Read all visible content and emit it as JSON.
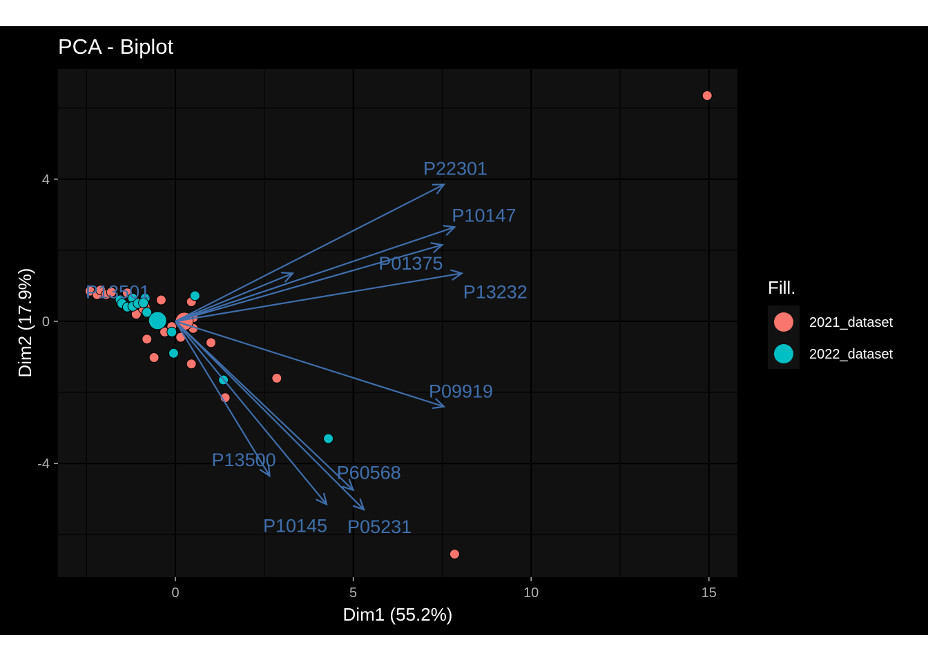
{
  "chart_data": {
    "type": "scatter",
    "title": "PCA - Biplot",
    "xlabel": "Dim1 (55.2%)",
    "ylabel": "Dim2 (17.9%)",
    "xlim": [
      -3.3,
      15.8
    ],
    "ylim": [
      -7.2,
      7.1
    ],
    "x_ticks": [
      0,
      5,
      10,
      15
    ],
    "y_ticks": [
      -4,
      0,
      4
    ],
    "x_tick_labels": [
      "0",
      "5",
      "10",
      "15"
    ],
    "y_tick_labels": [
      "-4",
      "0",
      "4"
    ],
    "grid": true,
    "legend": {
      "title": "Fill.",
      "placement": "right",
      "entries": [
        {
          "label": "2021_dataset",
          "color": "#f8766d"
        },
        {
          "label": "2022_dataset",
          "color": "#00bfc4"
        }
      ]
    },
    "series": [
      {
        "name": "2021_dataset",
        "color": "#f8766d",
        "points": [
          [
            -2.4,
            0.85
          ],
          [
            -2.2,
            0.75
          ],
          [
            -2.1,
            0.88
          ],
          [
            -1.95,
            0.75
          ],
          [
            -1.8,
            0.82
          ],
          [
            -1.35,
            0.8
          ],
          [
            -1.1,
            0.55
          ],
          [
            -0.85,
            0.4
          ],
          [
            -1.1,
            0.2
          ],
          [
            -0.4,
            0.6
          ],
          [
            -0.9,
            0.35
          ],
          [
            -0.8,
            -0.5
          ],
          [
            -0.6,
            -1.02
          ],
          [
            -0.3,
            -0.3
          ],
          [
            -0.1,
            -0.15
          ],
          [
            0.15,
            -0.45
          ],
          [
            0.5,
            0.1
          ],
          [
            0.45,
            0.55
          ],
          [
            0.5,
            -0.2
          ],
          [
            0.45,
            -1.2
          ],
          [
            1.0,
            -0.6
          ],
          [
            1.4,
            -2.15
          ],
          [
            2.85,
            -1.6
          ],
          [
            7.85,
            -6.55
          ],
          [
            14.95,
            6.35
          ]
        ],
        "centroid": [
          0.25,
          0.0
        ]
      },
      {
        "name": "2022_dataset",
        "color": "#00bfc4",
        "points": [
          [
            -1.55,
            0.6
          ],
          [
            -1.5,
            0.5
          ],
          [
            -1.35,
            0.4
          ],
          [
            -1.2,
            0.65
          ],
          [
            -1.2,
            0.42
          ],
          [
            -1.05,
            0.5
          ],
          [
            -0.85,
            0.65
          ],
          [
            -0.9,
            0.52
          ],
          [
            -0.8,
            0.25
          ],
          [
            -0.55,
            0.05
          ],
          [
            -0.1,
            -0.3
          ],
          [
            -0.05,
            -0.9
          ],
          [
            0.55,
            0.72
          ],
          [
            1.35,
            -1.65
          ],
          [
            4.3,
            -3.3
          ]
        ],
        "centroid": [
          -0.5,
          0.02
        ]
      }
    ],
    "loadings_color": "#3f6fad",
    "loadings": [
      {
        "label": "P22301",
        "x": 7.55,
        "y": 3.85
      },
      {
        "label": "P10147",
        "x": 7.85,
        "y": 2.65
      },
      {
        "label": "P01375",
        "x": 7.5,
        "y": 2.15
      },
      {
        "label": "P13232",
        "x": 8.05,
        "y": 1.35
      },
      {
        "label": "P13501",
        "x": 3.3,
        "y": 1.35
      },
      {
        "label": "P09919",
        "x": 7.55,
        "y": -2.4
      },
      {
        "label": "P13500",
        "x": 2.65,
        "y": -4.35
      },
      {
        "label": "P60568",
        "x": 5.0,
        "y": -4.75
      },
      {
        "label": "P10145",
        "x": 4.25,
        "y": -5.15
      },
      {
        "label": "P05231",
        "x": 5.3,
        "y": -5.3
      }
    ]
  }
}
